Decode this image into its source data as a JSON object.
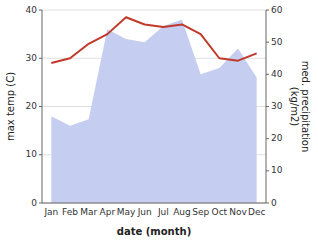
{
  "chart_data": {
    "type": "line",
    "xlabel": "date (month)",
    "ylabel": "max temp (C)",
    "y2label": "med. precipitation\n(kg/m2)",
    "categories": [
      "Jan",
      "Feb",
      "Mar",
      "Apr",
      "May",
      "Jun",
      "Jul",
      "Aug",
      "Sep",
      "Oct",
      "Nov",
      "Dec"
    ],
    "series": [
      {
        "type": "line",
        "color": "#c0392b",
        "values": [
          29,
          30,
          33,
          35,
          38.5,
          37,
          36.5,
          37,
          35,
          30,
          29.5,
          31
        ]
      },
      {
        "type": "area",
        "axis": "y2",
        "color": "#c5cef0",
        "values": [
          27,
          24,
          26,
          54,
          51,
          50,
          55,
          57,
          40,
          42,
          48,
          39
        ]
      }
    ],
    "ylim": [
      0,
      40
    ],
    "yticks": [
      0,
      10,
      20,
      30,
      40
    ],
    "y2lim": [
      0,
      60
    ],
    "y2ticks": [
      0,
      10,
      20,
      30,
      40,
      50,
      60
    ],
    "grid": true
  }
}
